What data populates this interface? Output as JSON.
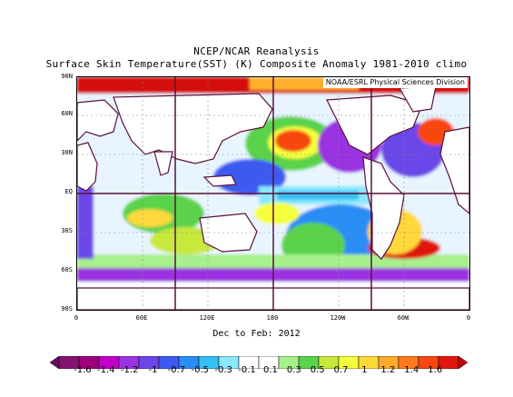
{
  "title": "NCEP/NCAR Reanalysis",
  "subtitle": "Surface Skin Temperature(SST) (K) Composite Anomaly 1981-2010 climo",
  "credit": "NOAA/ESRL Physical Sciences Division",
  "period": "Dec to Feb: 2012",
  "lat_labels": [
    "90N",
    "60N",
    "30N",
    "EQ",
    "30S",
    "60S",
    "90S"
  ],
  "lon_labels": [
    "0",
    "60E",
    "120E",
    "180",
    "120W",
    "60W",
    "0"
  ],
  "colorbar": {
    "labels": [
      "-1.6",
      "-1.4",
      "-1.2",
      "-1",
      "-0.7",
      "-0.5",
      "-0.3",
      "-0.1",
      "0.1",
      "0.3",
      "0.5",
      "0.7",
      "1",
      "1.2",
      "1.4",
      "1.6"
    ],
    "colors": [
      "#6a0b60",
      "#85126e",
      "#a0007f",
      "#c000c8",
      "#9a32e2",
      "#6a46e8",
      "#3c5af0",
      "#2a8cf5",
      "#34c0f2",
      "#8ae8ff",
      "#ffffff",
      "#ffffff",
      "#a8f08c",
      "#5ad24a",
      "#c8e83c",
      "#f5ff3c",
      "#ffd93a",
      "#ffaa2c",
      "#ff7a1e",
      "#f84610",
      "#e0160c",
      "#c8000a"
    ]
  },
  "map": {
    "land_color": "#ffffff",
    "coast_color": "#5a0f3c",
    "grid_color": "#5a0f3c",
    "legend_items": [
      "shaded anomaly",
      "coastlines",
      "lat/lon grid"
    ]
  }
}
